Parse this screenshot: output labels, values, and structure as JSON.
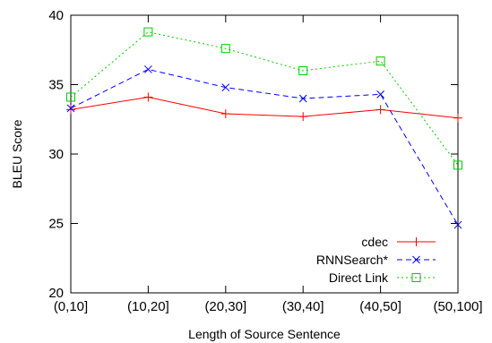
{
  "chart_data": {
    "type": "line",
    "title": "",
    "xlabel": "Length of Source Sentence",
    "ylabel": "BLEU Score",
    "categories": [
      "(0,10]",
      "(10,20]",
      "(20,30]",
      "(30,40]",
      "(40,50]",
      "(50,100]"
    ],
    "ylim": [
      20,
      40
    ],
    "yticks": [
      "20",
      "25",
      "30",
      "35",
      "40"
    ],
    "grid": false,
    "legend_position": "bottom-right",
    "series": [
      {
        "name": "cdec",
        "values": [
          33.2,
          34.1,
          32.9,
          32.7,
          33.2,
          32.6
        ],
        "color": "#ff0000",
        "dash": "solid",
        "marker": "plus"
      },
      {
        "name": "RNNSearch*",
        "values": [
          33.3,
          36.1,
          34.8,
          34.0,
          34.3,
          24.9
        ],
        "color": "#0000ff",
        "dash": "dashed",
        "marker": "x"
      },
      {
        "name": "Direct Link",
        "values": [
          34.1,
          38.8,
          37.6,
          36.0,
          36.7,
          29.2
        ],
        "color": "#00cc00",
        "dash": "dotted",
        "marker": "square"
      }
    ]
  }
}
